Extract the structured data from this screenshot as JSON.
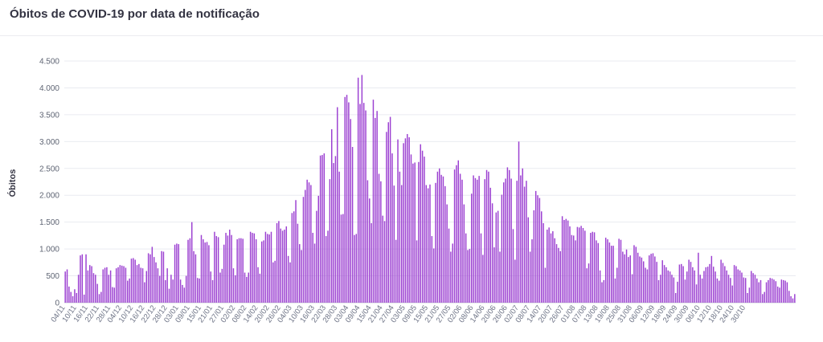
{
  "title": "Óbitos de COVID-19 por data de notificação",
  "chart_data": {
    "type": "bar",
    "title": "Óbitos de COVID-19 por data de notificação",
    "xlabel": "",
    "ylabel": "Óbitos",
    "ylim": [
      0,
      4500
    ],
    "yticks": [
      0,
      500,
      1000,
      1500,
      2000,
      2500,
      3000,
      3500,
      4000,
      4500
    ],
    "ytick_labels": [
      "0",
      "500",
      "1.000",
      "1.500",
      "2.000",
      "2.500",
      "3.000",
      "3.500",
      "4.000",
      "4.500"
    ],
    "grid": true,
    "bar_color": "#9b3fd1",
    "x_tick_labels": [
      "04/11",
      "10/11",
      "16/11",
      "22/11",
      "28/11",
      "04/12",
      "10/12",
      "16/12",
      "22/12",
      "28/12",
      "03/01",
      "09/01",
      "15/01",
      "21/01",
      "27/01",
      "02/02",
      "08/02",
      "14/02",
      "20/02",
      "26/02",
      "04/03",
      "10/03",
      "16/03",
      "22/03",
      "28/03",
      "03/04",
      "09/04",
      "15/04",
      "21/04",
      "27/04",
      "03/05",
      "09/05",
      "15/05",
      "21/05",
      "27/05",
      "02/06",
      "08/06",
      "14/06",
      "20/06",
      "26/06",
      "02/07",
      "08/07",
      "14/07",
      "20/07",
      "26/07",
      "01/08",
      "07/08",
      "13/08",
      "19/08",
      "25/08",
      "31/08",
      "06/09",
      "12/09",
      "18/09",
      "24/09",
      "30/09",
      "06/10",
      "12/10",
      "18/10",
      "24/10",
      "30/10"
    ],
    "values": [
      580,
      620,
      300,
      200,
      120,
      250,
      180,
      520,
      880,
      900,
      150,
      900,
      600,
      700,
      680,
      550,
      520,
      350,
      160,
      200,
      620,
      650,
      660,
      520,
      600,
      290,
      280,
      640,
      660,
      700,
      690,
      680,
      650,
      410,
      450,
      820,
      830,
      800,
      700,
      720,
      650,
      640,
      380,
      590,
      920,
      900,
      1040,
      850,
      750,
      640,
      500,
      960,
      950,
      420,
      640,
      260,
      520,
      430,
      1080,
      1100,
      1090,
      430,
      330,
      280,
      500,
      1170,
      1200,
      1500,
      960,
      900,
      460,
      450,
      1260,
      1180,
      1120,
      1130,
      1070,
      580,
      420,
      1320,
      1240,
      1220,
      560,
      630,
      1080,
      1300,
      1250,
      1360,
      1260,
      640,
      510,
      1180,
      1200,
      1200,
      1190,
      560,
      480,
      560,
      1320,
      1300,
      1290,
      1180,
      660,
      540,
      1140,
      1160,
      1320,
      1280,
      1270,
      1320,
      750,
      780,
      1480,
      1520,
      1380,
      1340,
      1360,
      1420,
      870,
      750,
      1670,
      1700,
      1910,
      1470,
      1090,
      980,
      1970,
      2100,
      2290,
      2240,
      2190,
      1300,
      1100,
      1710,
      1990,
      2740,
      2750,
      2780,
      1240,
      1340,
      2300,
      3230,
      2600,
      2730,
      3640,
      2440,
      1640,
      1650,
      3830,
      3870,
      3730,
      3420,
      2900,
      1260,
      1280,
      4190,
      3700,
      4240,
      3720,
      3580,
      2280,
      1940,
      1480,
      3780,
      3440,
      3570,
      2400,
      2260,
      1620,
      1520,
      3180,
      3360,
      3460,
      2780,
      2180,
      1170,
      3040,
      2440,
      2190,
      2970,
      3060,
      3140,
      3080,
      2760,
      2590,
      2610,
      1160,
      2620,
      2950,
      2830,
      2720,
      2190,
      2130,
      2200,
      1240,
      1010,
      2230,
      2440,
      2500,
      2380,
      2350,
      2170,
      1830,
      1380,
      950,
      1100,
      2480,
      2560,
      2650,
      2400,
      2290,
      1830,
      1290,
      980,
      1000,
      2030,
      2370,
      2320,
      2290,
      2360,
      1290,
      890,
      2300,
      2470,
      2440,
      2140,
      1850,
      1030,
      1680,
      1710,
      950,
      2010,
      2240,
      2310,
      2520,
      2470,
      2310,
      1370,
      800,
      2270,
      3000,
      2370,
      2500,
      2160,
      2270,
      1590,
      950,
      1180,
      1720,
      2080,
      2000,
      1950,
      1700,
      1480,
      650,
      1360,
      1400,
      1290,
      1330,
      1200,
      1090,
      1020,
      960,
      1610,
      1540,
      1560,
      1530,
      1420,
      1260,
      1250,
      1160,
      1410,
      1400,
      1430,
      1390,
      1340,
      640,
      730,
      1300,
      1320,
      1310,
      1160,
      1110,
      600,
      380,
      420,
      1210,
      1180,
      1120,
      1060,
      1060,
      450,
      650,
      1190,
      1170,
      950,
      900,
      990,
      850,
      880,
      530,
      1070,
      1040,
      930,
      860,
      840,
      770,
      650,
      620,
      880,
      910,
      920,
      860,
      760,
      420,
      520,
      790,
      700,
      660,
      600,
      580,
      520,
      470,
      180,
      390,
      710,
      720,
      680,
      430,
      580,
      800,
      760,
      660,
      600,
      340,
      930,
      520,
      450,
      590,
      660,
      670,
      720,
      870,
      670,
      580,
      450,
      410,
      800,
      740,
      680,
      600,
      520,
      460,
      320,
      700,
      680,
      620,
      600,
      560,
      470,
      460,
      180,
      280,
      590,
      550,
      520,
      450,
      380,
      420,
      160,
      200,
      380,
      420,
      460,
      450,
      430,
      400,
      300,
      280,
      430,
      420,
      410,
      380,
      220,
      120,
      80,
      160
    ]
  }
}
